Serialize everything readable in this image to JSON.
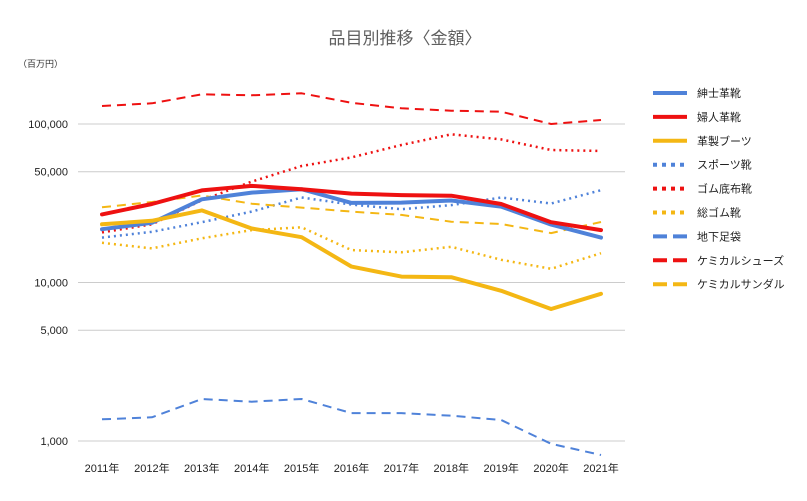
{
  "chart_data": {
    "type": "line",
    "title": "品目別推移〈金額〉",
    "unit_label": "（百万円）",
    "xlabel": "",
    "ylabel": "（百万円）",
    "yscale": "log",
    "ylim": [
      800,
      170000
    ],
    "grid": true,
    "legend_position": "right",
    "categories": [
      "2011年",
      "2012年",
      "2013年",
      "2014年",
      "2015年",
      "2016年",
      "2017年",
      "2018年",
      "2019年",
      "2020年",
      "2021年"
    ],
    "yticks": [
      {
        "value": 1000,
        "label": "1,000"
      },
      {
        "value": 5000,
        "label": "5,000"
      },
      {
        "value": 10000,
        "label": "10,000"
      },
      {
        "value": 50000,
        "label": "50,000"
      },
      {
        "value": 100000,
        "label": "100,000"
      }
    ],
    "series": [
      {
        "name": "紳士革靴",
        "color": "#4f82d9",
        "style": "solid",
        "values": [
          21700,
          23800,
          33500,
          36900,
          38800,
          31800,
          31900,
          32900,
          30100,
          23200,
          19200
        ]
      },
      {
        "name": "婦人革靴",
        "color": "#ee1111",
        "style": "solid",
        "values": [
          26900,
          31300,
          38100,
          40700,
          38800,
          36400,
          35600,
          35300,
          31300,
          24000,
          21400
        ]
      },
      {
        "name": "革製ブーツ",
        "color": "#f4b714",
        "style": "solid",
        "values": [
          23300,
          24500,
          28500,
          21900,
          19300,
          12600,
          10900,
          10800,
          8870,
          6800,
          8480
        ]
      },
      {
        "name": "スポーツ靴",
        "color": "#4f82d9",
        "style": "dotted",
        "values": [
          19200,
          20900,
          24000,
          28000,
          34400,
          31000,
          29000,
          30800,
          34400,
          31500,
          38200
        ]
      },
      {
        "name": "ゴム底布靴",
        "color": "#ee1111",
        "style": "dotted",
        "values": [
          20700,
          23300,
          33000,
          43300,
          54300,
          61600,
          73700,
          86100,
          80000,
          68500,
          67600
        ]
      },
      {
        "name": "総ゴム靴",
        "color": "#f4b714",
        "style": "dotted",
        "values": [
          17800,
          16400,
          19000,
          21400,
          22300,
          16000,
          15500,
          16800,
          13900,
          12200,
          15300
        ]
      },
      {
        "name": "地下足袋",
        "color": "#4f82d9",
        "style": "dashed",
        "values": [
          1370,
          1410,
          1840,
          1770,
          1840,
          1500,
          1500,
          1445,
          1356,
          960,
          816
        ]
      },
      {
        "name": "ケミカルシューズ",
        "color": "#ee1111",
        "style": "dashed",
        "values": [
          129900,
          135000,
          153900,
          151700,
          156300,
          136000,
          125700,
          121300,
          119600,
          100000,
          106000
        ]
      },
      {
        "name": "ケミカルサンダル",
        "color": "#f4b714",
        "style": "dashed",
        "values": [
          29800,
          32200,
          35400,
          31400,
          29700,
          28000,
          26700,
          24200,
          23400,
          20500,
          24100
        ]
      }
    ]
  }
}
